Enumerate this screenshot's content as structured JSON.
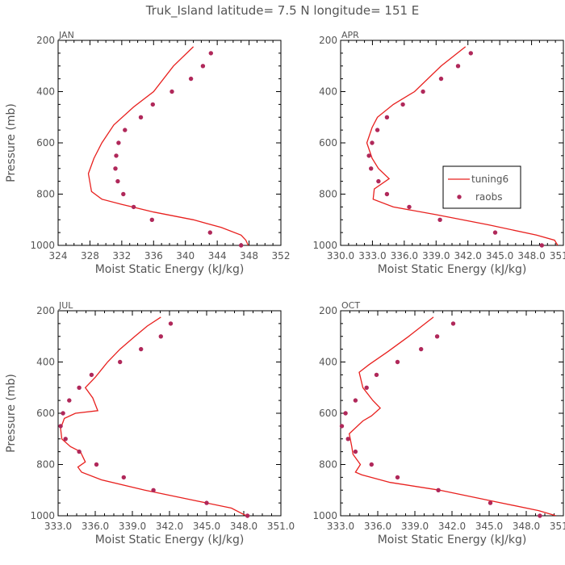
{
  "figure_title": "Truk_Island  latitude= 7.5 N longitude= 151 E",
  "colors": {
    "model": "#e8201e",
    "obs": "#b0285a",
    "axis": "#000000",
    "text": "#555555"
  },
  "legend": {
    "model_label": "tuning6",
    "obs_label": "raobs",
    "placement": "upper-right of APR panel"
  },
  "chart_data": [
    {
      "type": "line",
      "title": "JAN",
      "xlabel": "Moist Static Energy (kJ/kg)",
      "ylabel": "Pressure (mb)",
      "xlim": [
        324,
        352
      ],
      "ylim": [
        1000,
        200
      ],
      "xticks": [
        "324",
        "328",
        "332",
        "336",
        "340",
        "344",
        "348",
        "352"
      ],
      "yticks": [
        "200",
        "400",
        "600",
        "800",
        "1000"
      ],
      "series": [
        {
          "name": "tuning6",
          "style": "line",
          "x": [
            341.0,
            338.5,
            336.0,
            333.5,
            331.0,
            329.5,
            328.5,
            327.8,
            328.2,
            329.5,
            332.0,
            336.0,
            341.0,
            344.5,
            347.0,
            347.6,
            347.9
          ],
          "y": [
            225,
            300,
            400,
            460,
            530,
            600,
            660,
            720,
            790,
            820,
            840,
            870,
            900,
            930,
            960,
            980,
            1000
          ]
        },
        {
          "name": "raobs",
          "style": "marker",
          "x": [
            343.2,
            342.2,
            340.7,
            338.3,
            335.9,
            334.4,
            332.4,
            331.6,
            331.3,
            331.2,
            331.5,
            332.2,
            333.5,
            335.8,
            343.1,
            347.0
          ],
          "y": [
            250,
            300,
            350,
            400,
            450,
            500,
            550,
            600,
            650,
            700,
            750,
            800,
            850,
            900,
            950,
            1000
          ]
        }
      ]
    },
    {
      "type": "line",
      "title": "APR",
      "xlabel": "Moist Static Energy (kJ/kg)",
      "ylabel": "Pressure (mb)",
      "xlim": [
        330.03,
        351.03
      ],
      "ylim": [
        1000,
        200
      ],
      "xticks": [
        "330.0",
        "333.0",
        "336.0",
        "339.0",
        "342.0",
        "345.0",
        "348.0",
        "351.0"
      ],
      "yticks": [
        "200",
        "400",
        "600",
        "800",
        "1000"
      ],
      "series": [
        {
          "name": "tuning6",
          "style": "line",
          "x": [
            341.8,
            339.5,
            337.0,
            335.0,
            333.5,
            333.0,
            332.5,
            333.0,
            333.6,
            334.6,
            333.2,
            333.1,
            335.0,
            339.0,
            344.0,
            348.5,
            350.2,
            350.5
          ],
          "y": [
            225,
            300,
            400,
            450,
            500,
            540,
            600,
            660,
            700,
            740,
            780,
            820,
            850,
            880,
            920,
            960,
            980,
            1000
          ]
        },
        {
          "name": "raobs",
          "style": "marker",
          "x": [
            342.3,
            341.1,
            339.5,
            337.8,
            335.9,
            334.4,
            333.5,
            333.0,
            332.7,
            332.9,
            333.6,
            334.4,
            336.5,
            339.4,
            344.6,
            349.0
          ],
          "y": [
            250,
            300,
            350,
            400,
            450,
            500,
            550,
            600,
            650,
            700,
            750,
            800,
            850,
            900,
            950,
            1000
          ]
        }
      ]
    },
    {
      "type": "line",
      "title": "JUL",
      "xlabel": "Moist Static Energy (kJ/kg)",
      "ylabel": "Pressure (mb)",
      "xlim": [
        333.0,
        351.0
      ],
      "ylim": [
        1000,
        200
      ],
      "xticks": [
        "333.0",
        "336.0",
        "339.0",
        "342.0",
        "345.0",
        "348.0",
        "351.0"
      ],
      "yticks": [
        "200",
        "400",
        "600",
        "800",
        "1000"
      ],
      "series": [
        {
          "name": "tuning6",
          "style": "line",
          "x": [
            341.3,
            340.2,
            339.2,
            338.0,
            337.0,
            336.0,
            335.2,
            335.8,
            336.2,
            334.4,
            333.5,
            333.2,
            333.3,
            334.0,
            334.8,
            335.2,
            334.6,
            334.9,
            336.5,
            340.0,
            344.0,
            347.0,
            348.2
          ],
          "y": [
            225,
            260,
            300,
            350,
            400,
            460,
            500,
            540,
            590,
            600,
            620,
            660,
            700,
            730,
            750,
            790,
            810,
            830,
            860,
            900,
            940,
            970,
            1000
          ]
        },
        {
          "name": "raobs",
          "style": "marker",
          "x": [
            342.1,
            341.3,
            339.7,
            338.0,
            335.7,
            334.7,
            333.9,
            333.4,
            333.2,
            333.6,
            334.7,
            336.1,
            338.3,
            340.7,
            345.0,
            348.3
          ],
          "y": [
            250,
            300,
            350,
            400,
            450,
            500,
            550,
            600,
            650,
            700,
            750,
            800,
            850,
            900,
            950,
            1000
          ]
        }
      ]
    },
    {
      "type": "line",
      "title": "OCT",
      "xlabel": "Moist Static Energy (kJ/kg)",
      "ylabel": "Pressure (mb)",
      "xlim": [
        333.0,
        351.0
      ],
      "ylim": [
        1000,
        200
      ],
      "xticks": [
        "333.0",
        "336.0",
        "339.0",
        "342.0",
        "345.0",
        "348.0",
        "351.0"
      ],
      "yticks": [
        "200",
        "400",
        "600",
        "800",
        "1000"
      ],
      "series": [
        {
          "name": "tuning6",
          "style": "line",
          "x": [
            340.5,
            338.5,
            336.8,
            335.3,
            334.5,
            334.8,
            335.6,
            336.2,
            335.5,
            334.8,
            333.7,
            333.9,
            334.0,
            334.6,
            334.2,
            334.7,
            337.0,
            341.0,
            345.0,
            349.0,
            350.4
          ],
          "y": [
            225,
            300,
            360,
            410,
            440,
            500,
            550,
            580,
            610,
            630,
            680,
            730,
            760,
            800,
            830,
            840,
            870,
            900,
            940,
            980,
            1000
          ]
        },
        {
          "name": "raobs",
          "style": "marker",
          "x": [
            342.1,
            340.8,
            339.5,
            337.6,
            335.9,
            335.1,
            334.2,
            333.4,
            333.1,
            333.6,
            334.2,
            335.5,
            337.6,
            340.9,
            345.1,
            349.1
          ],
          "y": [
            250,
            300,
            350,
            400,
            450,
            500,
            550,
            600,
            650,
            700,
            750,
            800,
            850,
            900,
            950,
            1000
          ]
        }
      ]
    }
  ]
}
